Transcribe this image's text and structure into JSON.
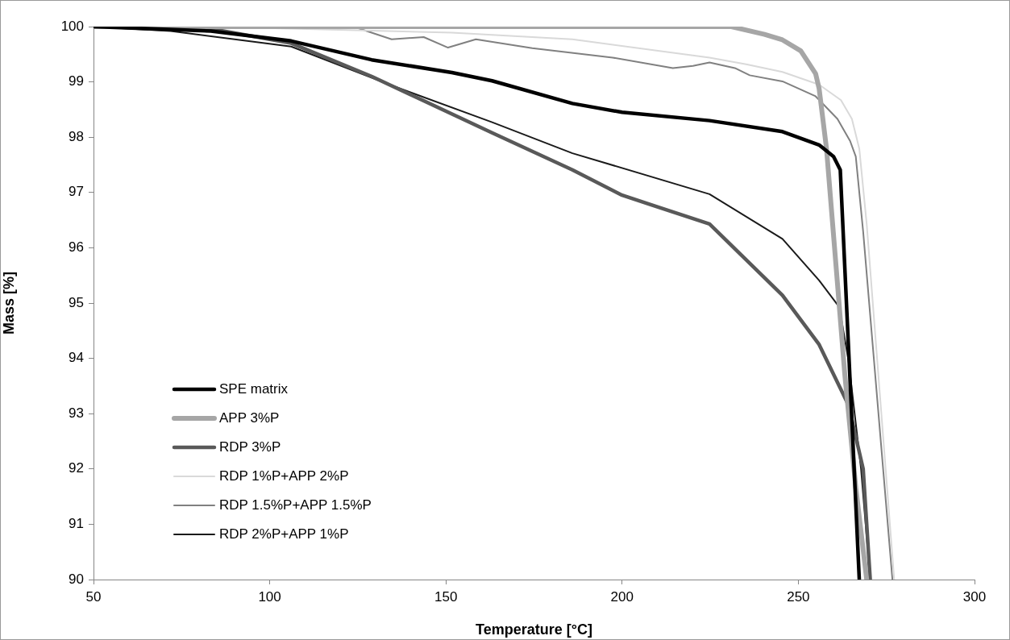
{
  "chart_data": {
    "type": "line",
    "xlabel": "Temperature [°C]",
    "ylabel": "Mass [%]",
    "xlim": [
      50,
      300
    ],
    "xticks": [
      50,
      100,
      150,
      200,
      250,
      300
    ],
    "ylim": [
      90,
      100
    ],
    "yticks": [
      90,
      91,
      92,
      93,
      94,
      95,
      96,
      97,
      98,
      99,
      100
    ],
    "grid": false,
    "legend": "bottom left",
    "marker": "none",
    "line_style": "solid",
    "series": [
      {
        "name": "SPE matrix",
        "color": "#000000",
        "x": [
          50,
          83.3,
          106.1,
          128.9,
          151.7,
          163.1,
          185.9,
          200,
          224.8,
          245.5,
          255.9,
          260,
          261.9,
          267.3
        ],
        "values": [
          100,
          99.92,
          99.74,
          99.4,
          99.17,
          99.02,
          98.61,
          98.45,
          98.3,
          98.1,
          97.86,
          97.65,
          97.41,
          90
        ]
      },
      {
        "name": "APP 3%P",
        "color": "#a6a6a6",
        "x": [
          50,
          100,
          150,
          200,
          231,
          240.4,
          245.5,
          250.7,
          254.9,
          255.9,
          258,
          260.6,
          263.2,
          266.3,
          269.4
        ],
        "values": [
          100,
          100,
          100,
          100,
          100,
          99.86,
          99.76,
          99.56,
          99.15,
          98.88,
          97.79,
          95.75,
          93.7,
          91.67,
          90
        ]
      },
      {
        "name": "RDP 3%P",
        "color": "#595959",
        "x": [
          50,
          83.3,
          106.1,
          128.9,
          163.1,
          185.9,
          200,
          224.8,
          245.5,
          255.9,
          264.2,
          268.4,
          270.4
        ],
        "values": [
          100,
          99.96,
          99.7,
          99.1,
          98.08,
          97.41,
          96.95,
          96.43,
          95.14,
          94.25,
          93.16,
          92.0,
          90
        ]
      },
      {
        "name": "RDP 1%P+APP 2%P",
        "color": "#d9d9d9",
        "x": [
          50,
          94.7,
          151.7,
          185.9,
          224.8,
          235.2,
          245.5,
          255.9,
          262.1,
          265.2,
          267.3,
          269.4,
          277.2
        ],
        "values": [
          100,
          99.98,
          99.89,
          99.77,
          99.44,
          99.32,
          99.18,
          98.95,
          98.67,
          98.33,
          97.79,
          96.43,
          90
        ]
      },
      {
        "name": "RDP 1.5%P+APP 1.5%P",
        "color": "#808080",
        "x": [
          50,
          123.8,
          128.9,
          134.6,
          143.7,
          150.6,
          158.5,
          174.5,
          197.3,
          214.4,
          220.1,
          224.8,
          232,
          236.2,
          245.5,
          254.9,
          261.1,
          264.7,
          266.3,
          268.4,
          276.7
        ],
        "values": [
          100,
          100,
          99.89,
          99.77,
          99.81,
          99.62,
          99.77,
          99.61,
          99.44,
          99.25,
          99.29,
          99.35,
          99.25,
          99.12,
          99.01,
          98.74,
          98.33,
          97.93,
          97.65,
          96.29,
          90
        ]
      },
      {
        "name": "RDP 2%P+APP 1%P",
        "color": "#1a1a1a",
        "x": [
          50,
          71.9,
          106.1,
          135.7,
          163.1,
          185.9,
          224.8,
          245.5,
          255.9,
          261.6,
          264.2,
          267.8,
          270.4
        ],
        "values": [
          100,
          99.92,
          99.64,
          98.91,
          98.27,
          97.71,
          96.97,
          96.16,
          95.41,
          94.93,
          93.98,
          92.0,
          90
        ]
      }
    ]
  }
}
